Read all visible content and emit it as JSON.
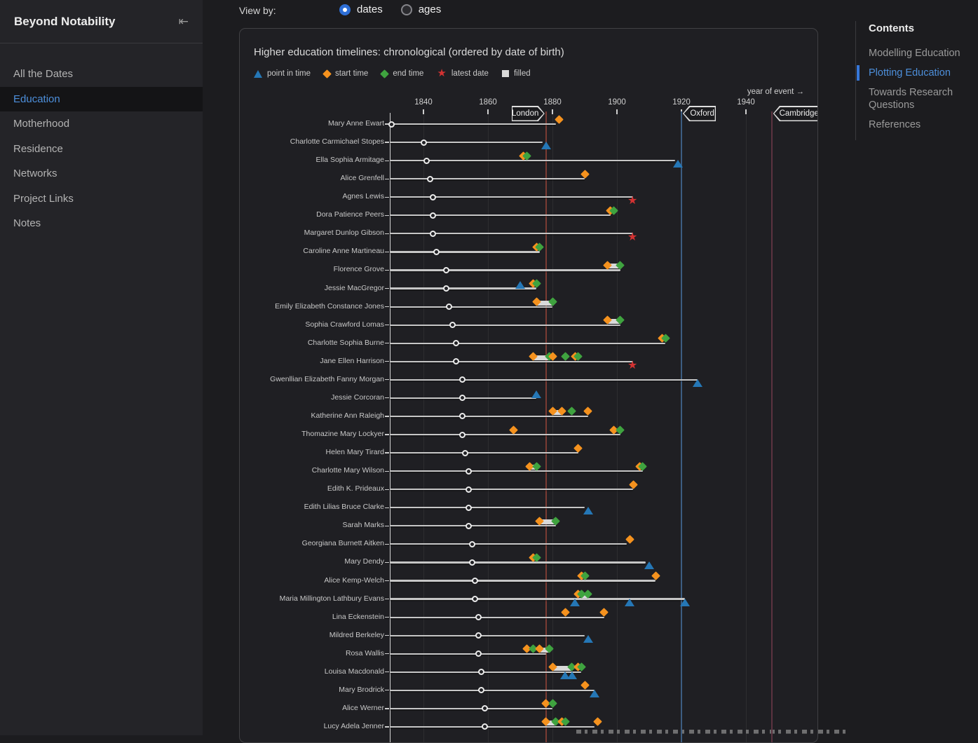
{
  "sidebar": {
    "title": "Beyond Notability",
    "collapse_icon": "⇤",
    "items": [
      {
        "label": "All the Dates",
        "active": false
      },
      {
        "label": "Education",
        "active": true
      },
      {
        "label": "Motherhood",
        "active": false
      },
      {
        "label": "Residence",
        "active": false
      },
      {
        "label": "Networks",
        "active": false
      },
      {
        "label": "Project Links",
        "active": false
      },
      {
        "label": "Notes",
        "active": false
      }
    ]
  },
  "controls": {
    "view_by_label": "View by:",
    "options": [
      {
        "label": "dates",
        "selected": true
      },
      {
        "label": "ages",
        "selected": false
      }
    ]
  },
  "toc": {
    "title": "Contents",
    "items": [
      {
        "label": "Modelling Education",
        "active": false
      },
      {
        "label": "Plotting Education",
        "active": true
      },
      {
        "label": "Towards Research Questions",
        "active": false
      },
      {
        "label": "References",
        "active": false
      }
    ]
  },
  "chart_data": {
    "type": "timeline",
    "title": "Higher education timelines: chronological (ordered by date of birth)",
    "legend": [
      {
        "label": "point in time",
        "marker": "triangle",
        "color": "#2577b6"
      },
      {
        "label": "start time",
        "marker": "diamond",
        "color": "#f5921e"
      },
      {
        "label": "end time",
        "marker": "diamond",
        "color": "#3fa33f"
      },
      {
        "label": "latest date",
        "marker": "star",
        "color": "#d33232"
      },
      {
        "label": "filled",
        "marker": "square",
        "color": "#d9d9d9"
      }
    ],
    "x_axis": {
      "label": "year of event →",
      "ticks": [
        1840,
        1860,
        1880,
        1900,
        1920,
        1940
      ],
      "range": [
        1828,
        1962
      ]
    },
    "reference_lines": [
      {
        "label": "London",
        "year": 1878,
        "color": "#7a3b33",
        "tag_side": "right"
      },
      {
        "label": "Oxford",
        "year": 1920,
        "color": "#3c5c80",
        "tag_side": "left"
      },
      {
        "label": "Cambridge",
        "year": 1948,
        "color": "#5c3340",
        "tag_side": "left"
      }
    ],
    "marker_colors": {
      "start": "#f5921e",
      "end": "#3fa33f",
      "point": "#2577b6",
      "latest": "#d33232"
    },
    "rows": [
      {
        "n": "Mary Anne Ewart",
        "b": 1830,
        "e": 1881,
        "bars": [],
        "m": [
          [
            "start",
            1882,
            "a"
          ]
        ]
      },
      {
        "n": "Charlotte Carmichael Stopes",
        "b": 1840,
        "e": 1877,
        "bars": [],
        "m": [
          [
            "point",
            1878,
            "b"
          ]
        ]
      },
      {
        "n": "Ella Sophia Armitage",
        "b": 1841,
        "e": 1918,
        "bars": [],
        "m": [
          [
            "start",
            1871,
            "a"
          ],
          [
            "end",
            1872,
            "a"
          ],
          [
            "point",
            1919,
            "b"
          ]
        ]
      },
      {
        "n": "Alice Grenfell",
        "b": 1842,
        "e": 1890,
        "bars": [],
        "m": [
          [
            "start",
            1890,
            "a"
          ]
        ]
      },
      {
        "n": "Agnes Lewis",
        "b": 1843,
        "e": 1905,
        "bars": [],
        "m": [
          [
            "latest",
            1905,
            "b"
          ]
        ]
      },
      {
        "n": "Dora Patience Peers",
        "b": 1843,
        "e": 1898,
        "bars": [],
        "m": [
          [
            "start",
            1898,
            "a"
          ],
          [
            "end",
            1899,
            "a"
          ]
        ]
      },
      {
        "n": "Margaret Dunlop Gibson",
        "b": 1843,
        "e": 1905,
        "bars": [],
        "m": [
          [
            "latest",
            1905,
            "b"
          ]
        ]
      },
      {
        "n": "Caroline Anne Martineau",
        "b": 1844,
        "e": 1876,
        "bars": [],
        "m": [
          [
            "start",
            1875,
            "a"
          ],
          [
            "end",
            1876,
            "a"
          ]
        ]
      },
      {
        "n": "Florence Grove",
        "b": 1847,
        "e": 1901,
        "bars": [
          [
            1897,
            1901
          ]
        ],
        "m": [
          [
            "start",
            1897,
            "a"
          ],
          [
            "end",
            1901,
            "a"
          ]
        ]
      },
      {
        "n": "Jessie MacGregor",
        "b": 1847,
        "e": 1875,
        "bars": [],
        "m": [
          [
            "point",
            1870,
            "a"
          ],
          [
            "start",
            1874,
            "a"
          ],
          [
            "end",
            1875,
            "a"
          ]
        ]
      },
      {
        "n": "Emily Elizabeth Constance Jones",
        "b": 1848,
        "e": 1880,
        "bars": [
          [
            1875,
            1880
          ]
        ],
        "m": [
          [
            "start",
            1875,
            "a"
          ],
          [
            "end",
            1880,
            "a"
          ]
        ]
      },
      {
        "n": "Sophia Crawford Lomas",
        "b": 1849,
        "e": 1901,
        "bars": [
          [
            1897,
            1901
          ]
        ],
        "m": [
          [
            "start",
            1897,
            "a"
          ],
          [
            "end",
            1901,
            "a"
          ]
        ]
      },
      {
        "n": "Charlotte Sophia Burne",
        "b": 1850,
        "e": 1915,
        "bars": [],
        "m": [
          [
            "start",
            1914,
            "a"
          ],
          [
            "end",
            1915,
            "a"
          ]
        ]
      },
      {
        "n": "Jane Ellen Harrison",
        "b": 1850,
        "e": 1905,
        "bars": [
          [
            1874,
            1879
          ]
        ],
        "m": [
          [
            "start",
            1874,
            "a"
          ],
          [
            "end",
            1879,
            "a"
          ],
          [
            "start",
            1880,
            "a"
          ],
          [
            "end",
            1884,
            "a"
          ],
          [
            "start",
            1887,
            "a"
          ],
          [
            "end",
            1888,
            "a"
          ],
          [
            "latest",
            1905,
            "b"
          ]
        ]
      },
      {
        "n": "Gwenllian Elizabeth Fanny Morgan",
        "b": 1852,
        "e": 1925,
        "bars": [],
        "m": [
          [
            "point",
            1925,
            "b"
          ]
        ]
      },
      {
        "n": "Jessie Corcoran",
        "b": 1852,
        "e": 1875,
        "bars": [],
        "m": [
          [
            "point",
            1875,
            "a"
          ]
        ]
      },
      {
        "n": "Katherine Ann Raleigh",
        "b": 1852,
        "e": 1891,
        "bars": [
          [
            1880,
            1883
          ]
        ],
        "m": [
          [
            "start",
            1880,
            "a"
          ],
          [
            "start",
            1883,
            "a"
          ],
          [
            "end",
            1886,
            "a"
          ],
          [
            "start",
            1891,
            "a"
          ]
        ]
      },
      {
        "n": "Thomazine Mary Lockyer",
        "b": 1852,
        "e": 1901,
        "bars": [],
        "m": [
          [
            "start",
            1868,
            "a"
          ],
          [
            "start",
            1899,
            "a"
          ],
          [
            "end",
            1901,
            "a"
          ]
        ]
      },
      {
        "n": "Helen Mary Tirard",
        "b": 1853,
        "e": 1888,
        "bars": [],
        "m": [
          [
            "start",
            1888,
            "a"
          ]
        ]
      },
      {
        "n": "Charlotte Mary Wilson",
        "b": 1854,
        "e": 1908,
        "bars": [
          [
            1873,
            1875
          ]
        ],
        "m": [
          [
            "start",
            1873,
            "a"
          ],
          [
            "end",
            1875,
            "a"
          ],
          [
            "start",
            1907,
            "a"
          ],
          [
            "end",
            1908,
            "a"
          ]
        ]
      },
      {
        "n": "Edith K. Prideaux",
        "b": 1854,
        "e": 1905,
        "bars": [],
        "m": [
          [
            "start",
            1905,
            "a"
          ]
        ]
      },
      {
        "n": "Edith Lilias Bruce Clarke",
        "b": 1854,
        "e": 1890,
        "bars": [],
        "m": [
          [
            "point",
            1891,
            "b"
          ]
        ]
      },
      {
        "n": "Sarah Marks",
        "b": 1854,
        "e": 1881,
        "bars": [
          [
            1876,
            1881
          ]
        ],
        "m": [
          [
            "start",
            1876,
            "a"
          ],
          [
            "end",
            1881,
            "a"
          ]
        ]
      },
      {
        "n": "Georgiana Burnett Aitken",
        "b": 1855,
        "e": 1903,
        "bars": [],
        "m": [
          [
            "start",
            1904,
            "a"
          ]
        ]
      },
      {
        "n": "Mary Dendy",
        "b": 1855,
        "e": 1909,
        "bars": [],
        "m": [
          [
            "start",
            1874,
            "a"
          ],
          [
            "end",
            1875,
            "a"
          ],
          [
            "point",
            1910,
            "b"
          ]
        ]
      },
      {
        "n": "Alice Kemp-Welch",
        "b": 1856,
        "e": 1912,
        "bars": [],
        "m": [
          [
            "start",
            1889,
            "a"
          ],
          [
            "end",
            1890,
            "a"
          ],
          [
            "start",
            1912,
            "a"
          ]
        ]
      },
      {
        "n": "Maria Millington Lathbury Evans",
        "b": 1856,
        "e": 1921,
        "bars": [
          [
            1889,
            1891
          ]
        ],
        "m": [
          [
            "start",
            1888,
            "a"
          ],
          [
            "end",
            1889,
            "a"
          ],
          [
            "end",
            1891,
            "a"
          ],
          [
            "point",
            1887,
            "b"
          ],
          [
            "point",
            1904,
            "b"
          ],
          [
            "point",
            1921,
            "b"
          ]
        ]
      },
      {
        "n": "Lina Eckenstein",
        "b": 1857,
        "e": 1896,
        "bars": [],
        "m": [
          [
            "start",
            1884,
            "a"
          ],
          [
            "start",
            1896,
            "a"
          ]
        ]
      },
      {
        "n": "Mildred Berkeley",
        "b": 1857,
        "e": 1890,
        "bars": [],
        "m": [
          [
            "point",
            1891,
            "b"
          ]
        ]
      },
      {
        "n": "Rosa Wallis",
        "b": 1857,
        "e": 1878,
        "bars": [
          [
            1876,
            1879
          ]
        ],
        "m": [
          [
            "start",
            1872,
            "a"
          ],
          [
            "end",
            1874,
            "a"
          ],
          [
            "start",
            1876,
            "a"
          ],
          [
            "end",
            1879,
            "a"
          ]
        ]
      },
      {
        "n": "Louisa Macdonald",
        "b": 1858,
        "e": 1889,
        "bars": [
          [
            1880,
            1886
          ]
        ],
        "m": [
          [
            "start",
            1880,
            "a"
          ],
          [
            "end",
            1886,
            "a"
          ],
          [
            "start",
            1888,
            "a"
          ],
          [
            "end",
            1889,
            "a"
          ],
          [
            "point",
            1884,
            "b"
          ],
          [
            "point",
            1886,
            "b"
          ]
        ]
      },
      {
        "n": "Mary Brodrick",
        "b": 1858,
        "e": 1893,
        "bars": [],
        "m": [
          [
            "start",
            1890,
            "a"
          ],
          [
            "point",
            1893,
            "b"
          ]
        ]
      },
      {
        "n": "Alice Werner",
        "b": 1859,
        "e": 1880,
        "bars": [],
        "m": [
          [
            "start",
            1878,
            "a"
          ],
          [
            "end",
            1880,
            "a"
          ]
        ]
      },
      {
        "n": "Lucy Adela Jenner",
        "b": 1859,
        "e": 1893,
        "bars": [
          [
            1878,
            1881
          ]
        ],
        "m": [
          [
            "start",
            1878,
            "a"
          ],
          [
            "end",
            1881,
            "a"
          ],
          [
            "start",
            1883,
            "a"
          ],
          [
            "end",
            1884,
            "a"
          ],
          [
            "start",
            1894,
            "a"
          ]
        ]
      }
    ]
  }
}
